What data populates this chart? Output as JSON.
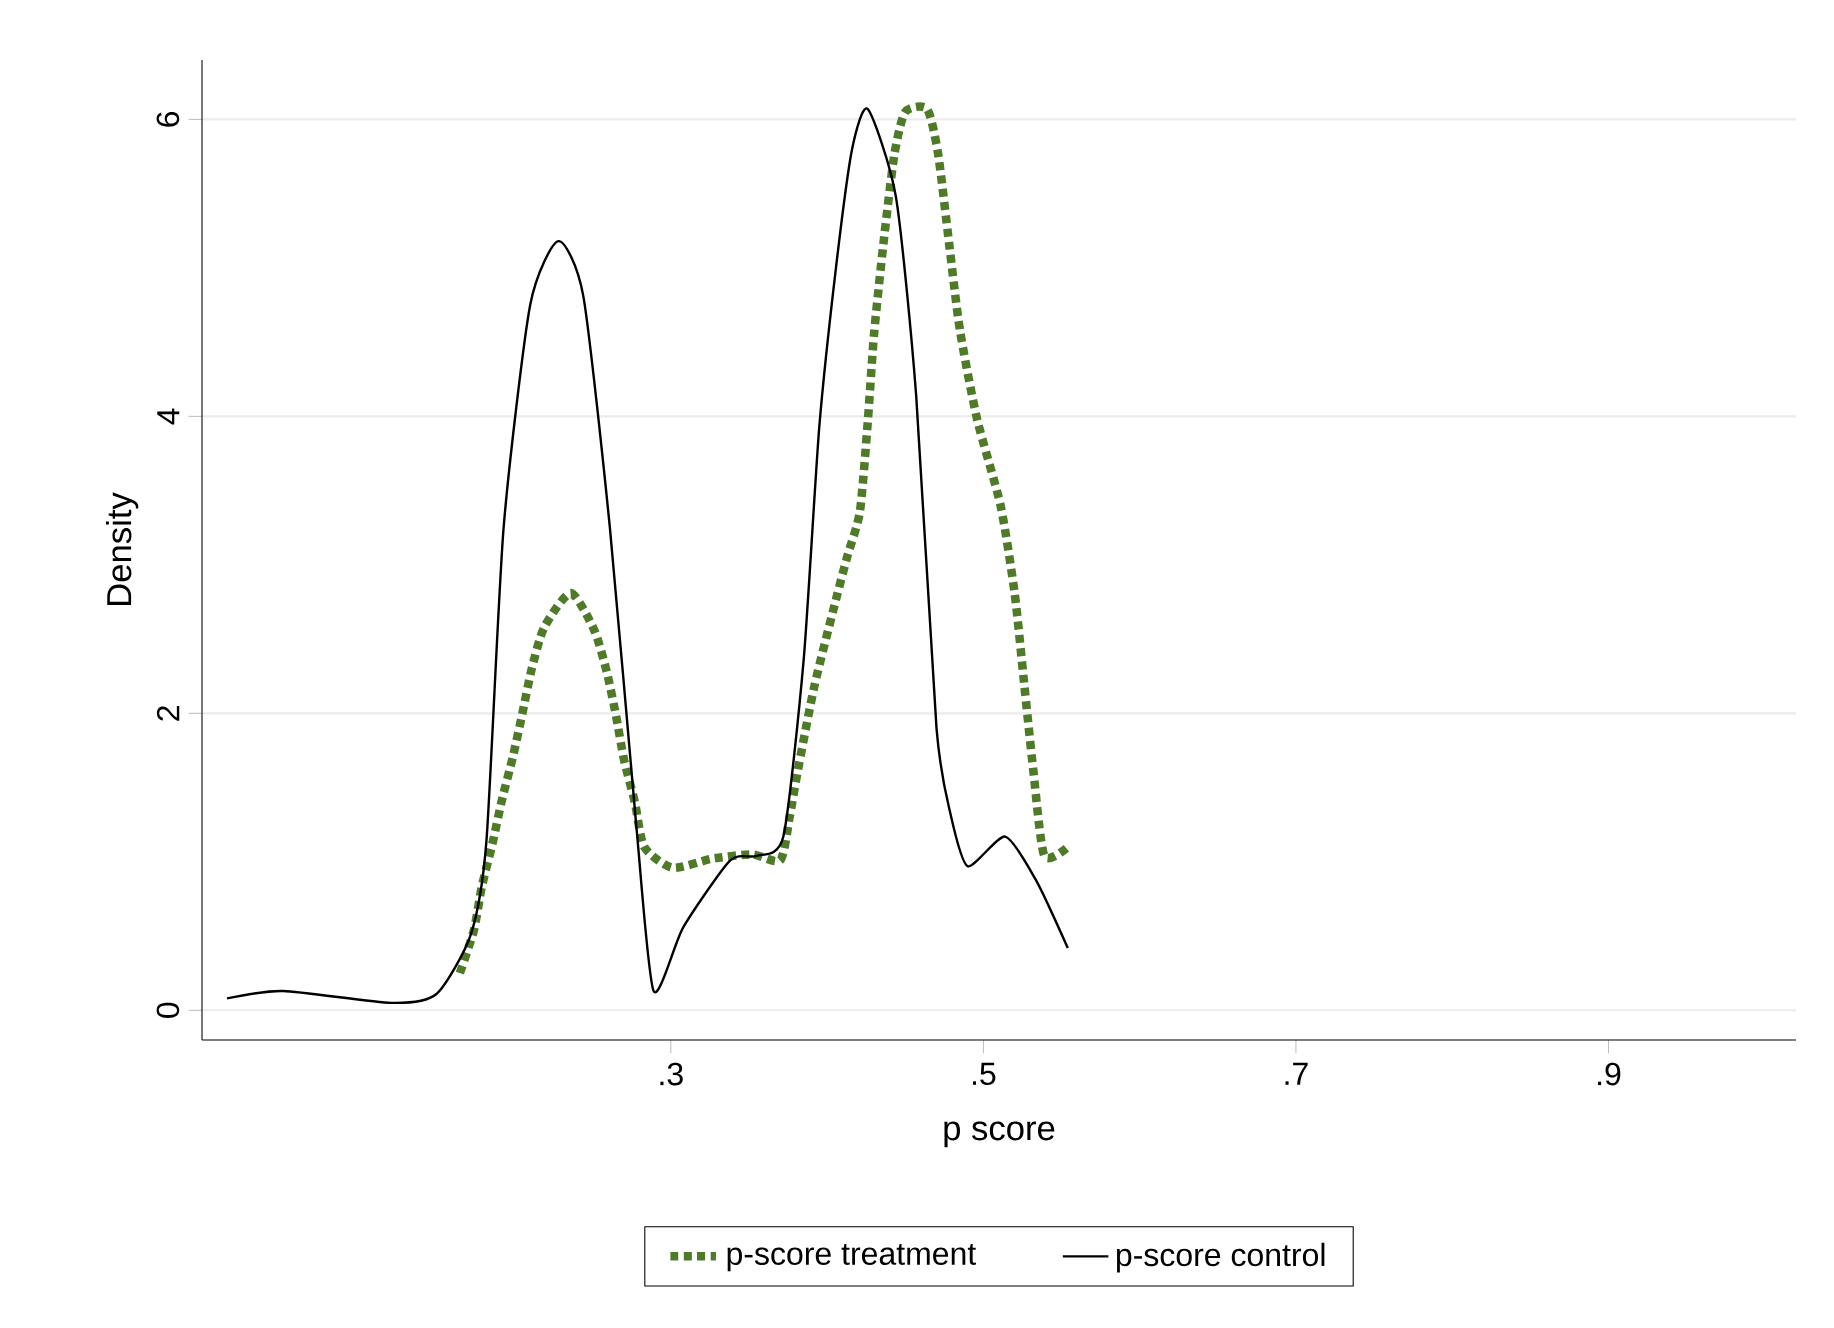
{
  "chart_data": {
    "type": "line",
    "xlabel": "p score",
    "ylabel": "Density",
    "xlim": [
      0,
      1.02
    ],
    "ylim": [
      -0.2,
      6.4
    ],
    "xticks": [
      {
        "value": 0.3,
        "label": ".3"
      },
      {
        "value": 0.5,
        "label": ".5"
      },
      {
        "value": 0.7,
        "label": ".7"
      },
      {
        "value": 0.9,
        "label": ".9"
      }
    ],
    "yticks": [
      0,
      2,
      4,
      6
    ],
    "grid": "y",
    "legend": "bottom",
    "series": [
      {
        "name": "p-score treatment",
        "color": "#4f7a28",
        "line_style": "dotted",
        "x": [
          0.165,
          0.174,
          0.179,
          0.186,
          0.192,
          0.199,
          0.205,
          0.211,
          0.219,
          0.236,
          0.251,
          0.259,
          0.265,
          0.27,
          0.277,
          0.283,
          0.301,
          0.326,
          0.352,
          0.37,
          0.376,
          0.381,
          0.392,
          0.406,
          0.413,
          0.421,
          0.426,
          0.43,
          0.436,
          0.443,
          0.45,
          0.464,
          0.471,
          0.478,
          0.485,
          0.496,
          0.511,
          0.52,
          0.526,
          0.532,
          0.539,
          0.554
        ],
        "values": [
          0.25,
          0.54,
          0.83,
          1.13,
          1.42,
          1.71,
          2.0,
          2.3,
          2.58,
          2.81,
          2.56,
          2.28,
          1.98,
          1.69,
          1.4,
          1.1,
          0.96,
          1.02,
          1.05,
          1.01,
          1.3,
          1.6,
          2.19,
          2.78,
          3.06,
          3.36,
          3.96,
          4.55,
          5.16,
          5.76,
          6.05,
          6.07,
          5.77,
          5.17,
          4.58,
          3.98,
          3.4,
          2.81,
          2.21,
          1.61,
          1.04,
          1.1
        ]
      },
      {
        "name": "p-score control",
        "color": "#000000",
        "line_style": "solid",
        "x": [
          0.016,
          0.052,
          0.121,
          0.15,
          0.172,
          0.182,
          0.193,
          0.21,
          0.228,
          0.244,
          0.261,
          0.278,
          0.289,
          0.308,
          0.338,
          0.355,
          0.372,
          0.385,
          0.395,
          0.406,
          0.416,
          0.426,
          0.444,
          0.457,
          0.47,
          0.479,
          0.49,
          0.514,
          0.534,
          0.554
        ],
        "values": [
          0.08,
          0.13,
          0.05,
          0.11,
          0.51,
          1.14,
          3.25,
          4.75,
          5.18,
          4.81,
          3.25,
          1.23,
          0.13,
          0.56,
          1.01,
          1.04,
          1.17,
          2.36,
          3.93,
          5.03,
          5.8,
          6.07,
          5.48,
          4.14,
          1.9,
          1.32,
          0.97,
          1.17,
          0.87,
          0.42
        ]
      }
    ]
  }
}
